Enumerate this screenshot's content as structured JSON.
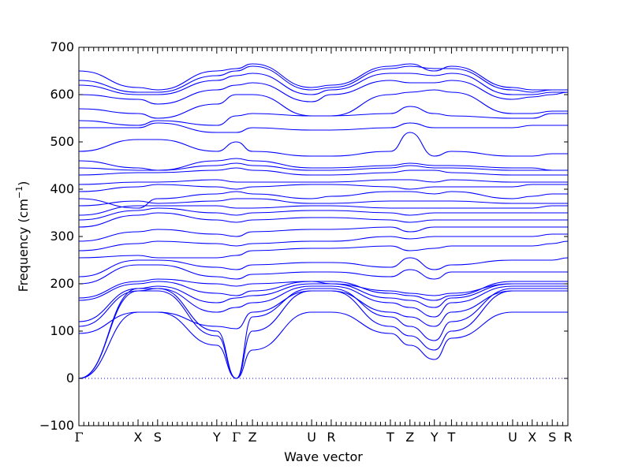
{
  "chart_data": {
    "type": "line",
    "title": "",
    "xlabel": "Wave vector",
    "ylabel": "Frequency (cm",
    "ylabel_unit_sup": "−1",
    "ylabel_close": ")",
    "ylim": [
      -100,
      700
    ],
    "yticks": [
      -100,
      0,
      100,
      200,
      300,
      400,
      500,
      600,
      700
    ],
    "ytick_labels": [
      "−100",
      "0",
      "100",
      "200",
      "300",
      "400",
      "500",
      "600",
      "700"
    ],
    "xlim": [
      0,
      1
    ],
    "high_symmetry_points": [
      {
        "label": "Γ",
        "x": 0.0
      },
      {
        "label": "X",
        "x": 0.121
      },
      {
        "label": "S",
        "x": 0.161
      },
      {
        "label": "Y",
        "x": 0.282
      },
      {
        "label": "Γ",
        "x": 0.322
      },
      {
        "label": "Z",
        "x": 0.355
      },
      {
        "label": "U",
        "x": 0.476
      },
      {
        "label": "R",
        "x": 0.516
      },
      {
        "label": "T",
        "x": 0.637
      },
      {
        "label": "Z",
        "x": 0.677
      },
      {
        "label": "Y",
        "x": 0.727
      },
      {
        "label": "T",
        "x": 0.762
      },
      {
        "label": "U",
        "x": 0.887
      },
      {
        "label": "X",
        "x": 0.927
      },
      {
        "label": "S",
        "x": 0.968
      },
      {
        "label": "R",
        "x": 1.0
      }
    ],
    "band_color": "#0000ff",
    "zero_line": {
      "y": 0,
      "style": "dotted",
      "color": "#0000ff"
    },
    "grid": false,
    "legend": "none",
    "series": [
      {
        "x": [
          0,
          0.121,
          0.161,
          0.282,
          0.322
        ],
        "values": [
          0,
          140,
          140,
          70,
          0
        ]
      },
      {
        "x": [
          0,
          0.121,
          0.161,
          0.282,
          0.322
        ],
        "values": [
          0,
          185,
          185,
          90,
          0
        ]
      },
      {
        "x": [
          0,
          0.121,
          0.161,
          0.282,
          0.322
        ],
        "values": [
          0,
          190,
          190,
          100,
          0
        ]
      },
      {
        "x": [
          0.322,
          0.355,
          0.476,
          0.516,
          0.637,
          0.677,
          0.727,
          0.762,
          0.887,
          0.927,
          0.968,
          1.0
        ],
        "values": [
          0,
          60,
          140,
          140,
          95,
          70,
          40,
          85,
          140,
          140,
          140,
          140
        ]
      },
      {
        "x": [
          0.322,
          0.355,
          0.476,
          0.516,
          0.637,
          0.677,
          0.727,
          0.762,
          0.887,
          0.927,
          0.968,
          1.0
        ],
        "values": [
          0,
          100,
          185,
          185,
          110,
          90,
          60,
          100,
          185,
          185,
          185,
          185
        ]
      },
      {
        "x": [
          0.322,
          0.355,
          0.476,
          0.516,
          0.637,
          0.677,
          0.727,
          0.762,
          0.887,
          0.927,
          0.968,
          1.0
        ],
        "values": [
          0,
          130,
          190,
          190,
          130,
          110,
          80,
          120,
          190,
          190,
          190,
          190
        ]
      },
      {
        "x": [
          0,
          0.121,
          0.161,
          0.282,
          0.322,
          0.355,
          0.476,
          0.516,
          0.637,
          0.677,
          0.727,
          0.762,
          0.887,
          0.927,
          0.968,
          1.0
        ],
        "values": [
          95,
          140,
          140,
          110,
          105,
          140,
          185,
          185,
          140,
          130,
          110,
          140,
          185,
          185,
          185,
          185
        ]
      },
      {
        "x": [
          0,
          0.121,
          0.161,
          0.282,
          0.322,
          0.355,
          0.476,
          0.516,
          0.637,
          0.677,
          0.727,
          0.762,
          0.887,
          0.927,
          0.968,
          1.0
        ],
        "values": [
          110,
          185,
          190,
          140,
          150,
          160,
          195,
          195,
          160,
          150,
          130,
          160,
          195,
          195,
          195,
          195
        ]
      },
      {
        "x": [
          0,
          0.121,
          0.161,
          0.282,
          0.322,
          0.355,
          0.476,
          0.516,
          0.637,
          0.677,
          0.727,
          0.762,
          0.887,
          0.927,
          0.968,
          1.0
        ],
        "values": [
          120,
          190,
          195,
          160,
          170,
          175,
          200,
          200,
          170,
          165,
          150,
          170,
          200,
          200,
          200,
          200
        ]
      },
      {
        "x": [
          0,
          0.121,
          0.161,
          0.282,
          0.322,
          0.355,
          0.476,
          0.516,
          0.637,
          0.677,
          0.727,
          0.762,
          0.887,
          0.927,
          0.968,
          1.0
        ],
        "values": [
          165,
          200,
          205,
          180,
          175,
          185,
          205,
          205,
          180,
          175,
          165,
          175,
          205,
          205,
          205,
          205
        ]
      },
      {
        "x": [
          0,
          0.121,
          0.161,
          0.282,
          0.322,
          0.355,
          0.476,
          0.516,
          0.637,
          0.677,
          0.727,
          0.762,
          0.887,
          0.927,
          0.968,
          1.0
        ],
        "values": [
          170,
          205,
          210,
          200,
          195,
          200,
          205,
          200,
          185,
          180,
          175,
          180,
          200,
          200,
          200,
          200
        ]
      },
      {
        "x": [
          0,
          0.121,
          0.161,
          0.282,
          0.322,
          0.355,
          0.476,
          0.516,
          0.637,
          0.677,
          0.727,
          0.762,
          0.887,
          0.927,
          0.968,
          1.0
        ],
        "values": [
          200,
          240,
          240,
          215,
          210,
          220,
          225,
          225,
          215,
          230,
          210,
          225,
          225,
          225,
          225,
          225
        ]
      },
      {
        "x": [
          0,
          0.121,
          0.161,
          0.282,
          0.322,
          0.355,
          0.476,
          0.516,
          0.637,
          0.677,
          0.727,
          0.762,
          0.887,
          0.927,
          0.968,
          1.0
        ],
        "values": [
          215,
          250,
          250,
          235,
          230,
          240,
          245,
          245,
          235,
          255,
          230,
          240,
          250,
          250,
          250,
          255
        ]
      },
      {
        "x": [
          0,
          0.121,
          0.161,
          0.282,
          0.322,
          0.355,
          0.476,
          0.516,
          0.637,
          0.677,
          0.727,
          0.762,
          0.887,
          0.927,
          0.968,
          1.0
        ],
        "values": [
          255,
          260,
          255,
          255,
          260,
          270,
          275,
          275,
          280,
          270,
          275,
          280,
          280,
          280,
          285,
          290
        ]
      },
      {
        "x": [
          0,
          0.121,
          0.161,
          0.282,
          0.322,
          0.355,
          0.476,
          0.516,
          0.637,
          0.677,
          0.727,
          0.762,
          0.887,
          0.927,
          0.968,
          1.0
        ],
        "values": [
          270,
          285,
          290,
          285,
          280,
          285,
          290,
          290,
          300,
          295,
          300,
          300,
          300,
          300,
          305,
          305
        ]
      },
      {
        "x": [
          0,
          0.121,
          0.161,
          0.282,
          0.322,
          0.355,
          0.476,
          0.516,
          0.637,
          0.677,
          0.727,
          0.762,
          0.887,
          0.927,
          0.968,
          1.0
        ],
        "values": [
          290,
          310,
          315,
          305,
          300,
          310,
          315,
          315,
          320,
          310,
          320,
          320,
          320,
          320,
          320,
          320
        ]
      },
      {
        "x": [
          0,
          0.121,
          0.161,
          0.282,
          0.322,
          0.355,
          0.476,
          0.516,
          0.637,
          0.677,
          0.727,
          0.762,
          0.887,
          0.927,
          0.968,
          1.0
        ],
        "values": [
          320,
          345,
          350,
          335,
          330,
          335,
          340,
          340,
          335,
          330,
          335,
          335,
          335,
          335,
          335,
          335
        ]
      },
      {
        "x": [
          0,
          0.121,
          0.161,
          0.282,
          0.322,
          0.355,
          0.476,
          0.516,
          0.637,
          0.677,
          0.727,
          0.762,
          0.887,
          0.927,
          0.968,
          1.0
        ],
        "values": [
          335,
          355,
          360,
          350,
          345,
          350,
          355,
          355,
          350,
          345,
          350,
          350,
          350,
          350,
          350,
          350
        ]
      },
      {
        "x": [
          0,
          0.121,
          0.161,
          0.282,
          0.322,
          0.355,
          0.476,
          0.516,
          0.637,
          0.677,
          0.727,
          0.762,
          0.887,
          0.927,
          0.968,
          1.0
        ],
        "values": [
          345,
          365,
          365,
          365,
          360,
          360,
          365,
          365,
          360,
          360,
          360,
          360,
          360,
          360,
          365,
          365
        ]
      },
      {
        "x": [
          0,
          0.121,
          0.161,
          0.282,
          0.322,
          0.355,
          0.476,
          0.516,
          0.637,
          0.677,
          0.727,
          0.762,
          0.887,
          0.927,
          0.968,
          1.0
        ],
        "values": [
          365,
          375,
          370,
          375,
          380,
          380,
          370,
          370,
          375,
          375,
          375,
          375,
          370,
          370,
          370,
          370
        ]
      },
      {
        "x": [
          0,
          0.121,
          0.161,
          0.282,
          0.322,
          0.355,
          0.476,
          0.516,
          0.637,
          0.677,
          0.727,
          0.762,
          0.887,
          0.927,
          0.968,
          1.0
        ],
        "values": [
          380,
          360,
          380,
          390,
          395,
          390,
          380,
          385,
          395,
          395,
          390,
          395,
          380,
          385,
          390,
          390
        ]
      },
      {
        "x": [
          0,
          0.121,
          0.161,
          0.282,
          0.322,
          0.355,
          0.476,
          0.516,
          0.637,
          0.677,
          0.727,
          0.762,
          0.887,
          0.927,
          0.968,
          1.0
        ],
        "values": [
          395,
          405,
          410,
          405,
          400,
          405,
          410,
          410,
          405,
          400,
          405,
          405,
          405,
          410,
          410,
          410
        ]
      },
      {
        "x": [
          0,
          0.121,
          0.161,
          0.282,
          0.322,
          0.355,
          0.476,
          0.516,
          0.637,
          0.677,
          0.727,
          0.762,
          0.887,
          0.927,
          0.968,
          1.0
        ],
        "values": [
          410,
          415,
          415,
          420,
          415,
          415,
          415,
          415,
          420,
          420,
          415,
          420,
          415,
          415,
          415,
          415
        ]
      },
      {
        "x": [
          0,
          0.121,
          0.161,
          0.282,
          0.322,
          0.355,
          0.476,
          0.516,
          0.637,
          0.677,
          0.727,
          0.762,
          0.887,
          0.927,
          0.968,
          1.0
        ],
        "values": [
          430,
          435,
          435,
          440,
          445,
          440,
          430,
          430,
          435,
          440,
          440,
          435,
          430,
          430,
          430,
          430
        ]
      },
      {
        "x": [
          0,
          0.121,
          0.161,
          0.282,
          0.322,
          0.355,
          0.476,
          0.516,
          0.637,
          0.677,
          0.727,
          0.762,
          0.887,
          0.927,
          0.968,
          1.0
        ],
        "values": [
          445,
          440,
          440,
          450,
          455,
          450,
          440,
          440,
          445,
          450,
          445,
          445,
          440,
          440,
          440,
          440
        ]
      },
      {
        "x": [
          0,
          0.121,
          0.161,
          0.282,
          0.322,
          0.355,
          0.476,
          0.516,
          0.637,
          0.677,
          0.727,
          0.762,
          0.887,
          0.927,
          0.968,
          1.0
        ],
        "values": [
          460,
          445,
          440,
          460,
          465,
          460,
          445,
          445,
          450,
          455,
          450,
          450,
          445,
          445,
          440,
          440
        ]
      },
      {
        "x": [
          0,
          0.121,
          0.161,
          0.282,
          0.322,
          0.355,
          0.476,
          0.516,
          0.637,
          0.677,
          0.727,
          0.762,
          0.887,
          0.927,
          0.968,
          1.0
        ],
        "values": [
          480,
          505,
          505,
          480,
          500,
          480,
          470,
          470,
          480,
          520,
          470,
          480,
          470,
          470,
          475,
          475
        ]
      },
      {
        "x": [
          0,
          0.121,
          0.161,
          0.282,
          0.322,
          0.355,
          0.476,
          0.516,
          0.637,
          0.677,
          0.727,
          0.762,
          0.887,
          0.927,
          0.968,
          1.0
        ],
        "values": [
          530,
          530,
          540,
          520,
          520,
          530,
          525,
          525,
          530,
          540,
          530,
          530,
          530,
          535,
          535,
          535
        ]
      },
      {
        "x": [
          0,
          0.121,
          0.161,
          0.282,
          0.322,
          0.355,
          0.476,
          0.516,
          0.637,
          0.677,
          0.727,
          0.762,
          0.887,
          0.927,
          0.968,
          1.0
        ],
        "values": [
          545,
          535,
          545,
          535,
          555,
          560,
          555,
          555,
          560,
          575,
          560,
          555,
          550,
          550,
          560,
          560
        ]
      },
      {
        "x": [
          0,
          0.121,
          0.161,
          0.282,
          0.322,
          0.355,
          0.476,
          0.516,
          0.637,
          0.677,
          0.727,
          0.762,
          0.887,
          0.927,
          0.968,
          1.0
        ],
        "values": [
          570,
          560,
          550,
          580,
          600,
          600,
          555,
          555,
          600,
          605,
          610,
          605,
          560,
          560,
          565,
          565
        ]
      },
      {
        "x": [
          0,
          0.121,
          0.161,
          0.282,
          0.322,
          0.355,
          0.476,
          0.516,
          0.637,
          0.677,
          0.727,
          0.762,
          0.887,
          0.927,
          0.968,
          1.0
        ],
        "values": [
          600,
          590,
          580,
          610,
          620,
          625,
          585,
          600,
          630,
          625,
          625,
          630,
          590,
          595,
          600,
          605
        ]
      },
      {
        "x": [
          0,
          0.121,
          0.161,
          0.282,
          0.322,
          0.355,
          0.476,
          0.516,
          0.637,
          0.677,
          0.727,
          0.762,
          0.887,
          0.927,
          0.968,
          1.0
        ],
        "values": [
          620,
          600,
          600,
          630,
          640,
          645,
          600,
          610,
          645,
          645,
          640,
          645,
          600,
          600,
          605,
          605
        ]
      },
      {
        "x": [
          0,
          0.121,
          0.161,
          0.282,
          0.322,
          0.355,
          0.476,
          0.516,
          0.637,
          0.677,
          0.727,
          0.762,
          0.887,
          0.927,
          0.968,
          1.0
        ],
        "values": [
          630,
          605,
          605,
          640,
          650,
          660,
          610,
          615,
          655,
          660,
          655,
          655,
          610,
          605,
          610,
          610
        ]
      },
      {
        "x": [
          0,
          0.121,
          0.161,
          0.282,
          0.322,
          0.355,
          0.476,
          0.516,
          0.637,
          0.677,
          0.727,
          0.762,
          0.887,
          0.927,
          0.968,
          1.0
        ],
        "values": [
          650,
          615,
          610,
          650,
          655,
          665,
          615,
          620,
          660,
          665,
          650,
          660,
          615,
          610,
          610,
          610
        ]
      }
    ]
  }
}
